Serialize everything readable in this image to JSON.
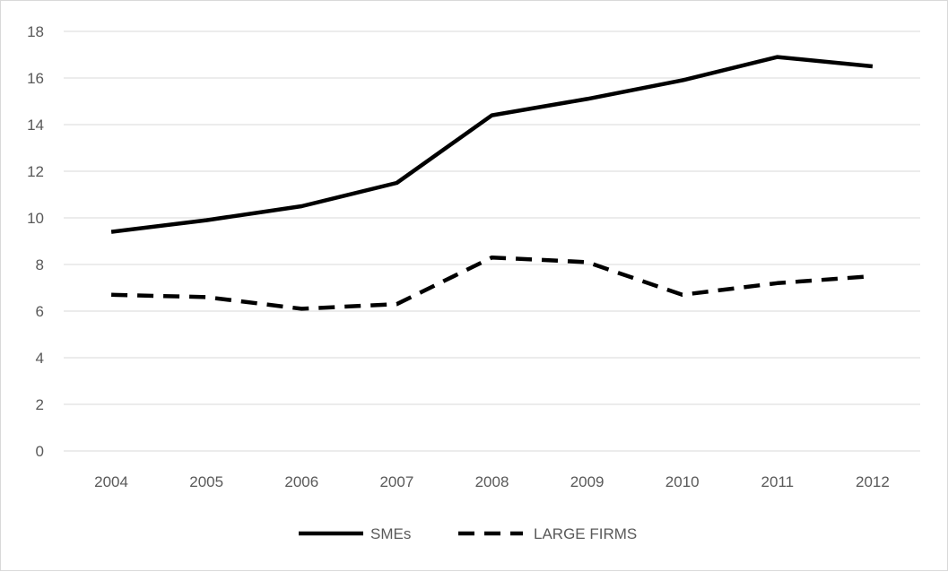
{
  "chart_data": {
    "type": "line",
    "categories": [
      "2004",
      "2005",
      "2006",
      "2007",
      "2008",
      "2009",
      "2010",
      "2011",
      "2012"
    ],
    "series": [
      {
        "name": "SMEs",
        "style": "solid",
        "color": "#000000",
        "values": [
          9.4,
          9.9,
          10.5,
          11.5,
          14.4,
          15.1,
          15.9,
          16.9,
          16.5
        ]
      },
      {
        "name": "LARGE FIRMS",
        "style": "dashed",
        "color": "#000000",
        "values": [
          6.7,
          6.6,
          6.1,
          6.3,
          8.3,
          8.1,
          6.7,
          7.2,
          7.5
        ]
      }
    ],
    "yticks": [
      "0",
      "2",
      "4",
      "6",
      "8",
      "10",
      "12",
      "14",
      "16",
      "18"
    ],
    "ylim": [
      0,
      18
    ],
    "grid": true,
    "gridline_color": "#d9d9d9",
    "legend_position": "bottom"
  }
}
